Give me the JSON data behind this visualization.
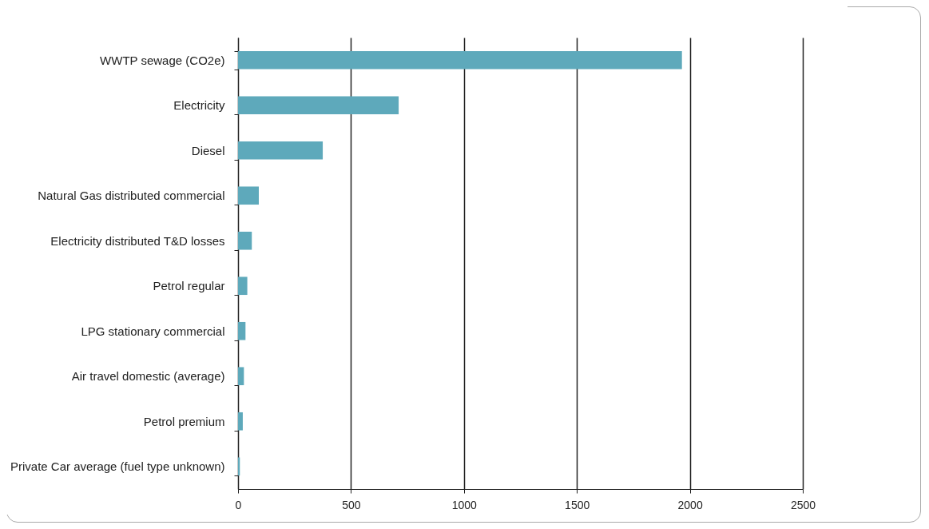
{
  "chart_data": {
    "type": "bar",
    "orientation": "horizontal",
    "categories": [
      "WWTP sewage (CO2e)",
      "Electricity",
      "Diesel",
      "Natural Gas distributed commercial",
      "Electricity distributed T&D losses",
      "Petrol regular",
      "LPG stationary commercial",
      "Air travel domestic (average)",
      "Petrol premium",
      "Private Car average (fuel type unknown)"
    ],
    "values": [
      1965,
      711,
      375,
      92,
      61,
      41,
      33,
      26,
      21,
      8
    ],
    "color": "#5ea9bb",
    "xlim": [
      0,
      2500
    ],
    "xticks": [
      0,
      500,
      1000,
      1500,
      2000,
      2500
    ],
    "grid": "x"
  }
}
